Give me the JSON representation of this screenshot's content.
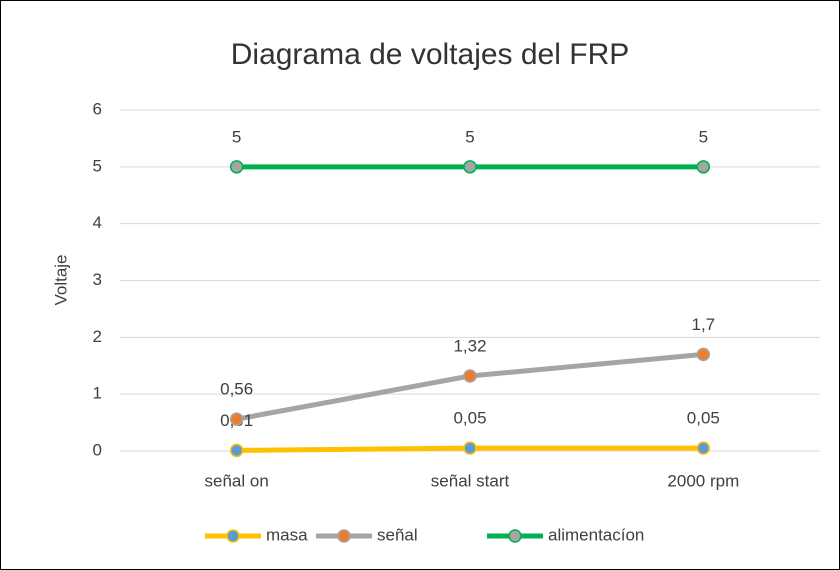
{
  "chart_data": {
    "type": "line",
    "title": "Diagrama de voltajes del FRP",
    "y_label": "Voltaje",
    "categories": [
      "señal on",
      "señal start",
      "2000 rpm"
    ],
    "series": [
      {
        "name": "masa",
        "color": "#FFC000",
        "marker_color": "#5B9BD5",
        "values": [
          0.01,
          0.05,
          0.05
        ],
        "value_labels": [
          "0,01",
          "0,05",
          "0,05"
        ]
      },
      {
        "name": "señal",
        "color": "#A5A5A5",
        "marker_color": "#ED7D31",
        "values": [
          0.56,
          1.32,
          1.7
        ],
        "value_labels": [
          "0,56",
          "1,32",
          "1,7"
        ]
      },
      {
        "name": "alimentacíon",
        "color": "#00B050",
        "marker_color": "#A5A5A5",
        "values": [
          5,
          5,
          5
        ],
        "value_labels": [
          "5",
          "5",
          "5"
        ]
      }
    ],
    "ylim": [
      0,
      6
    ],
    "yticks": [
      0,
      1,
      2,
      3,
      4,
      5,
      6
    ],
    "grid": true,
    "legend": "bottom"
  }
}
